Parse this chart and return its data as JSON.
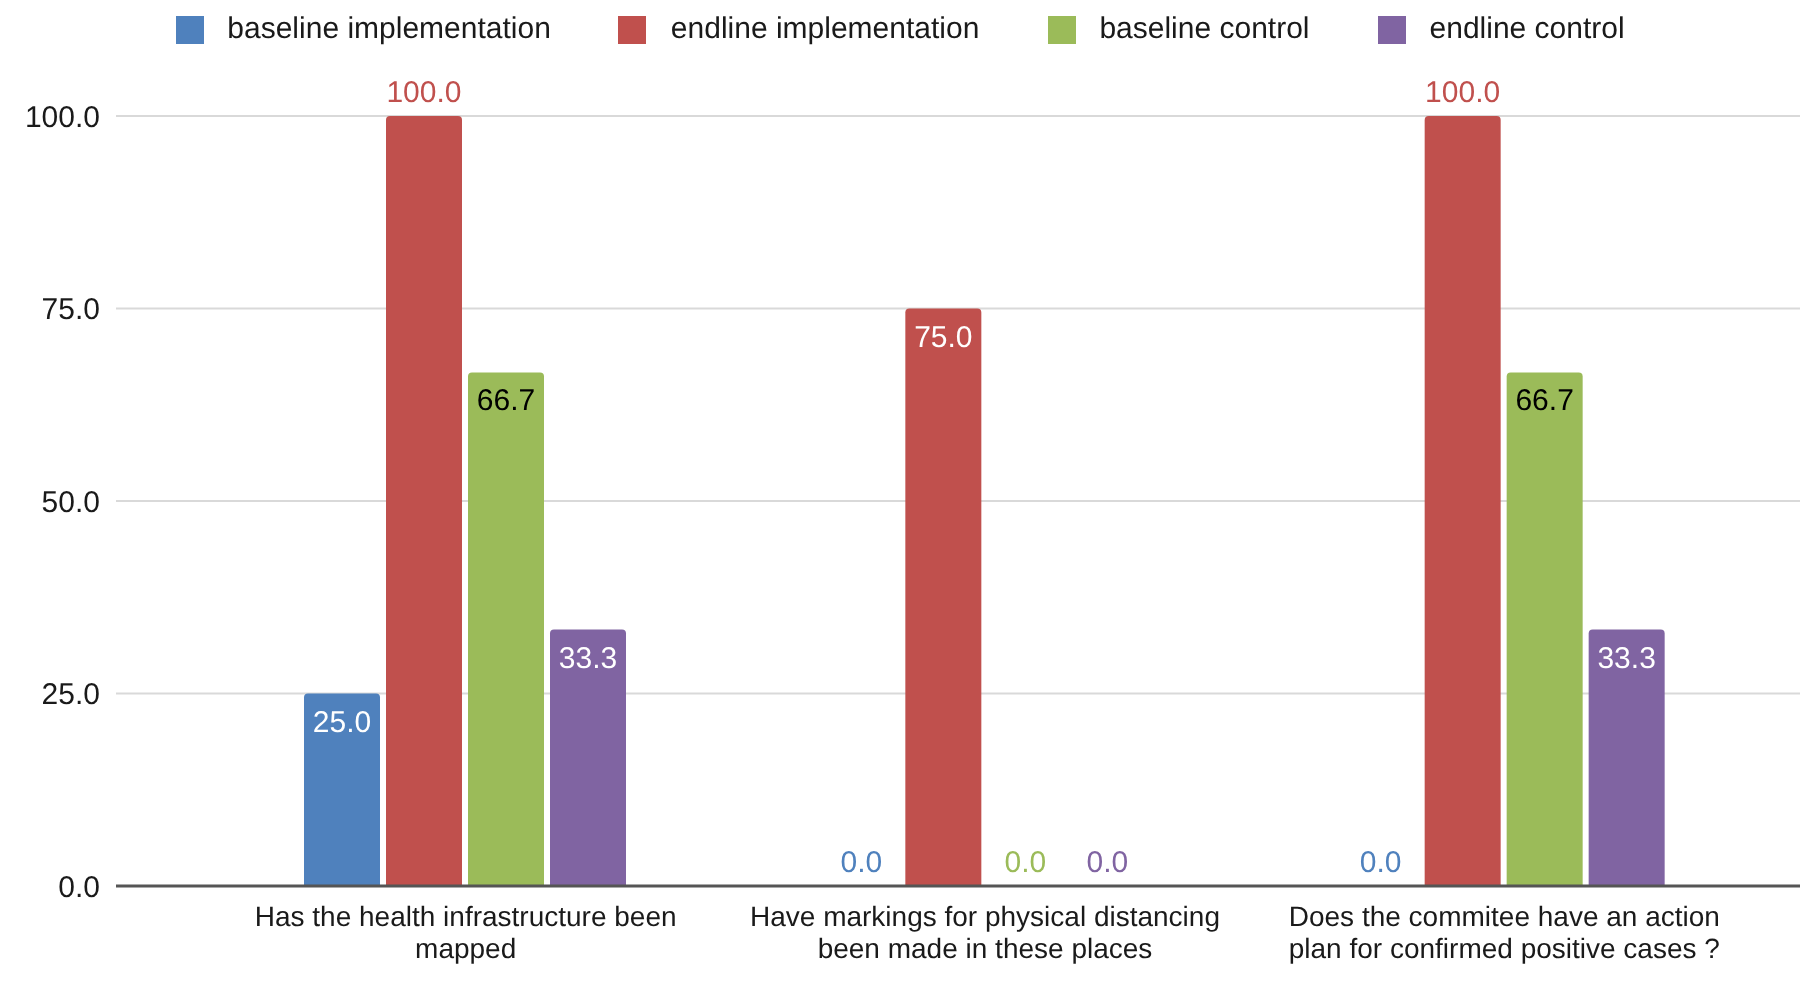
{
  "chart_data": {
    "type": "bar",
    "categories": [
      "Has the health infrastructure been mapped",
      "Have markings for physical distancing been made in these places",
      "Does the commitee have an action plan for confirmed positive cases ?"
    ],
    "series": [
      {
        "name": "baseline implementation",
        "color": "#4f81bd",
        "values": [
          25,
          0,
          0
        ],
        "value_labels": [
          "25.0",
          "0.0",
          "0.0"
        ]
      },
      {
        "name": "endline implementation",
        "color": "#c0504d",
        "values": [
          100,
          75,
          100
        ],
        "value_labels": [
          "100.0",
          "75.0",
          "100.0"
        ]
      },
      {
        "name": "baseline control",
        "color": "#9bbb59",
        "values": [
          66.7,
          0,
          66.7
        ],
        "value_labels": [
          "66.7",
          "0.0",
          "66.7"
        ]
      },
      {
        "name": "endline control",
        "color": "#8064a2",
        "values": [
          33.3,
          0,
          33.3
        ],
        "value_labels": [
          "33.3",
          "0.0",
          "33.3"
        ]
      }
    ],
    "ylim": [
      0,
      100
    ],
    "yticks": [
      {
        "value": 0,
        "label": "0.0"
      },
      {
        "value": 25,
        "label": "25.0"
      },
      {
        "value": 50,
        "label": "50.0"
      },
      {
        "value": 75,
        "label": "75.0"
      },
      {
        "value": 100,
        "label": "100.0"
      }
    ],
    "grid": "y",
    "legend": "top"
  }
}
